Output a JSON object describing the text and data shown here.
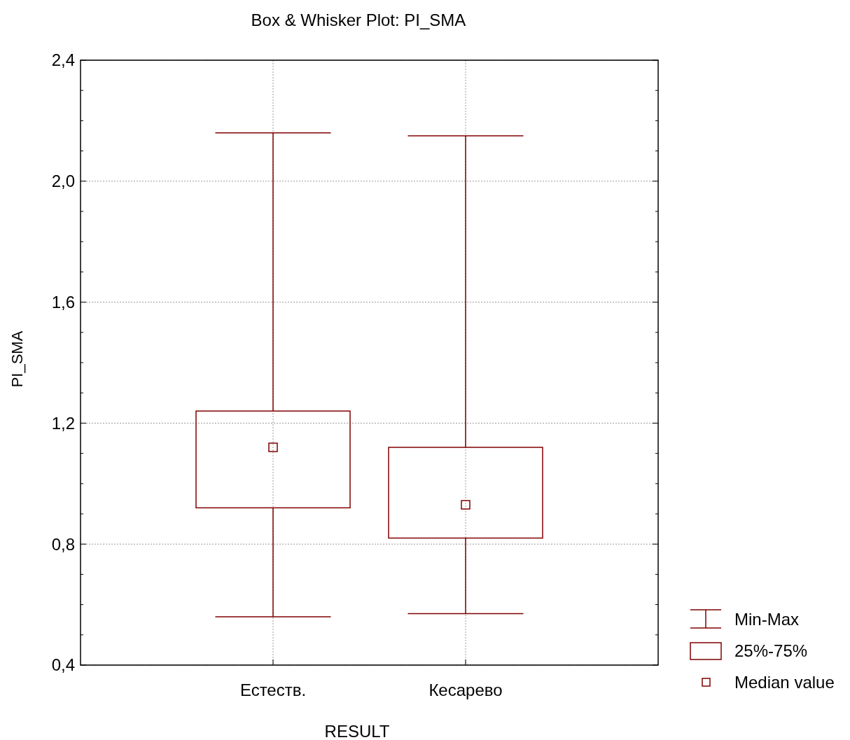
{
  "chart_data": {
    "type": "box",
    "title": "Box & Whisker Plot: PI_SMA",
    "xlabel": "RESULT",
    "ylabel": "PI_SMA",
    "categories": [
      "Естеств.",
      "Кесарево"
    ],
    "series": [
      {
        "color": "#800000",
        "boxes": [
          {
            "low": 0.56,
            "q1": 0.92,
            "median": 1.12,
            "q3": 1.24,
            "high": 2.16
          },
          {
            "low": 0.57,
            "q1": 0.82,
            "median": 0.93,
            "q3": 1.12,
            "high": 2.15
          }
        ]
      }
    ],
    "ylim": [
      0.4,
      2.4
    ],
    "yticks": [
      {
        "value": 0.4,
        "label": "0,4"
      },
      {
        "value": 0.5,
        "label": null
      },
      {
        "value": 0.6,
        "label": null
      },
      {
        "value": 0.7,
        "label": null
      },
      {
        "value": 0.8,
        "label": "0,8"
      },
      {
        "value": 0.9,
        "label": null
      },
      {
        "value": 1.0,
        "label": null
      },
      {
        "value": 1.1,
        "label": null
      },
      {
        "value": 1.2,
        "label": "1,2"
      },
      {
        "value": 1.3,
        "label": null
      },
      {
        "value": 1.4,
        "label": null
      },
      {
        "value": 1.5,
        "label": null
      },
      {
        "value": 1.6,
        "label": "1,6"
      },
      {
        "value": 1.7,
        "label": null
      },
      {
        "value": 1.8,
        "label": null
      },
      {
        "value": 1.9,
        "label": null
      },
      {
        "value": 2.0,
        "label": "2,0"
      },
      {
        "value": 2.1,
        "label": null
      },
      {
        "value": 2.2,
        "label": null
      },
      {
        "value": 2.3,
        "label": null
      },
      {
        "value": 2.4,
        "label": "2,4"
      }
    ],
    "grid": true,
    "annotations": [
      "Min-Max",
      "25%-75%",
      "Median value"
    ]
  }
}
